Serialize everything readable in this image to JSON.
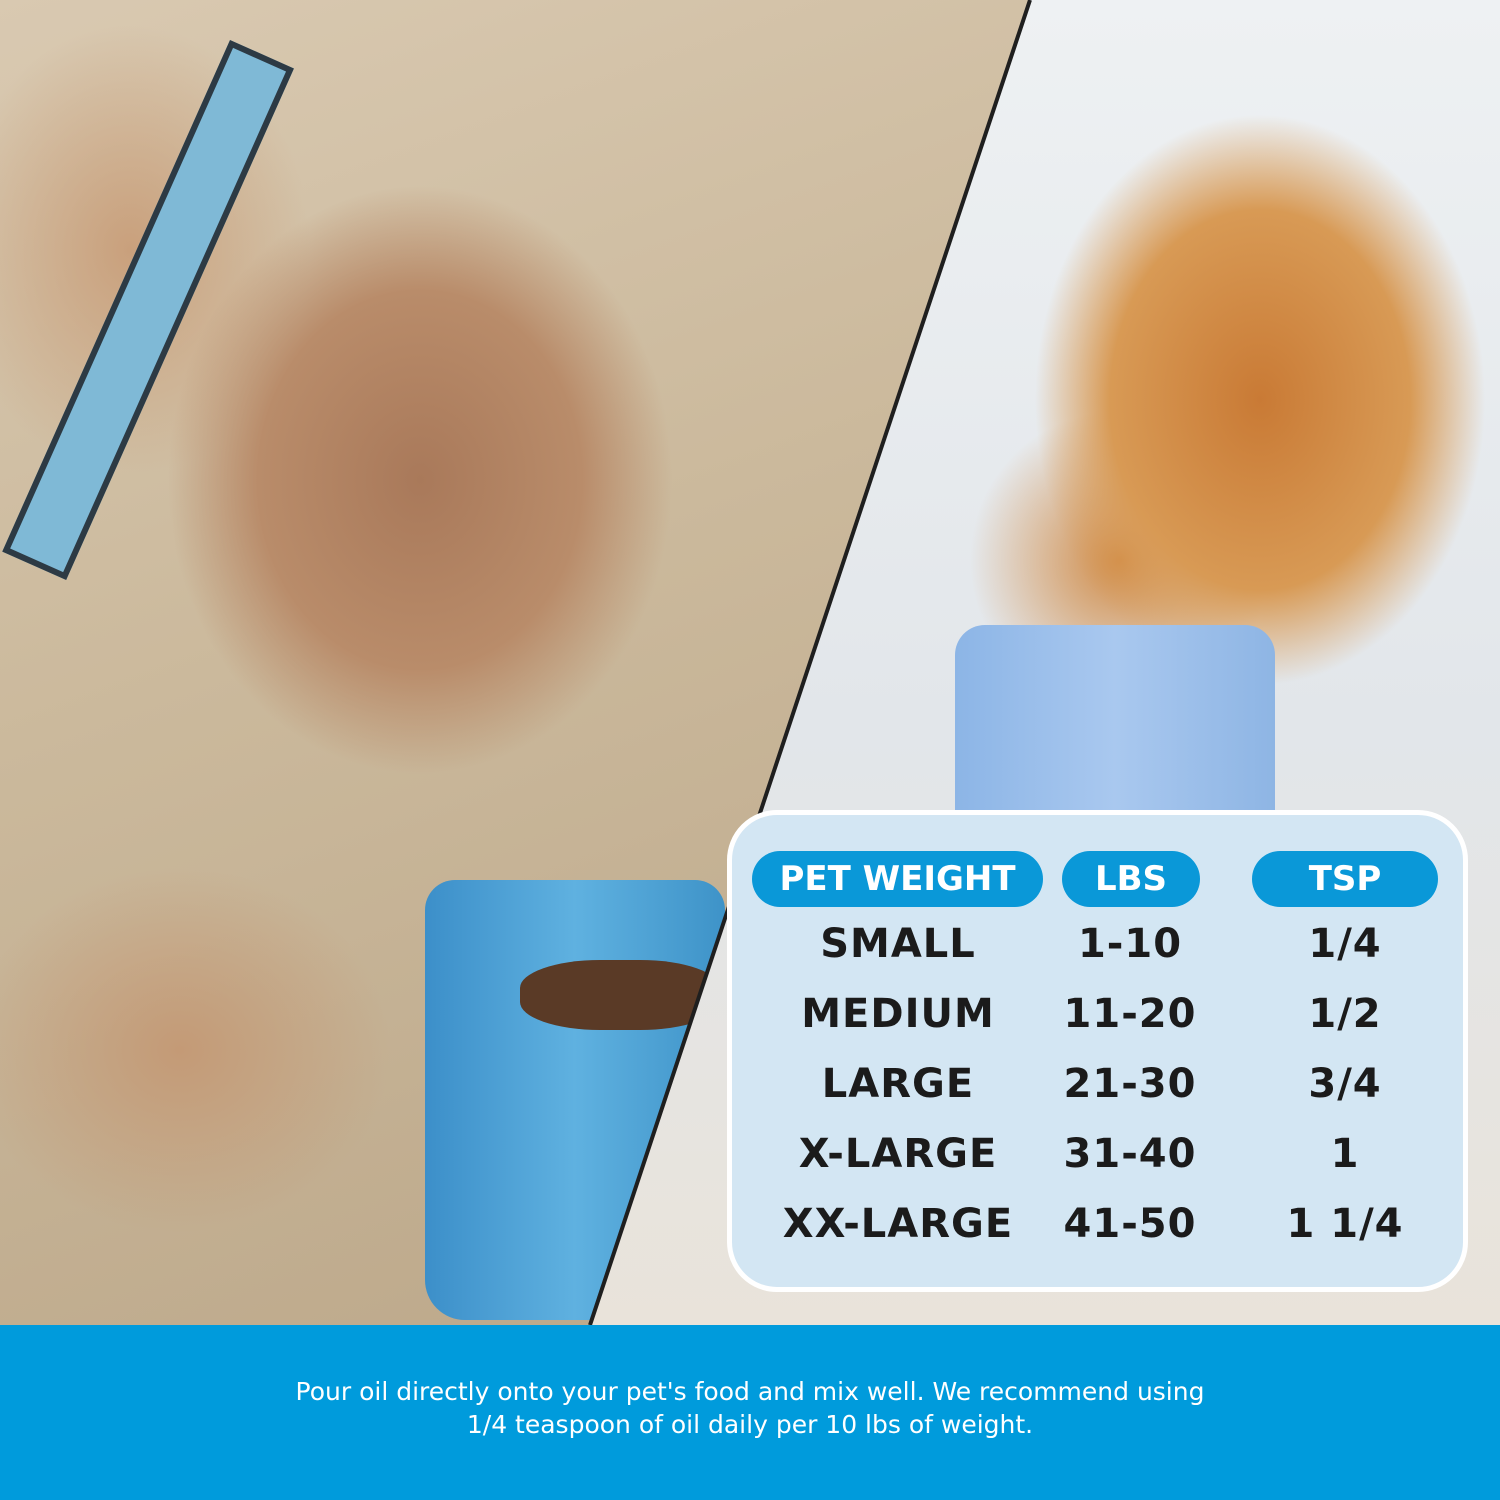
{
  "table": {
    "headers": [
      "PET WEIGHT",
      "LBS",
      "TSP"
    ],
    "rows": [
      [
        "SMALL",
        "1-10",
        "1/4"
      ],
      [
        "MEDIUM",
        "11-20",
        "1/2"
      ],
      [
        "LARGE",
        "21-30",
        "3/4"
      ],
      [
        "X-LARGE",
        "31-40",
        "1"
      ],
      [
        "XX-LARGE",
        "41-50",
        "1 1/4"
      ]
    ]
  },
  "footer": {
    "line1": "Pour oil directly onto your pet's food and mix well. We recommend using",
    "line2": "1/4 teaspoon of oil daily per 10 lbs of weight."
  },
  "colors": {
    "accent": "#009bdc",
    "pill": "#0a98d8",
    "panel": "#d3e6f3"
  }
}
